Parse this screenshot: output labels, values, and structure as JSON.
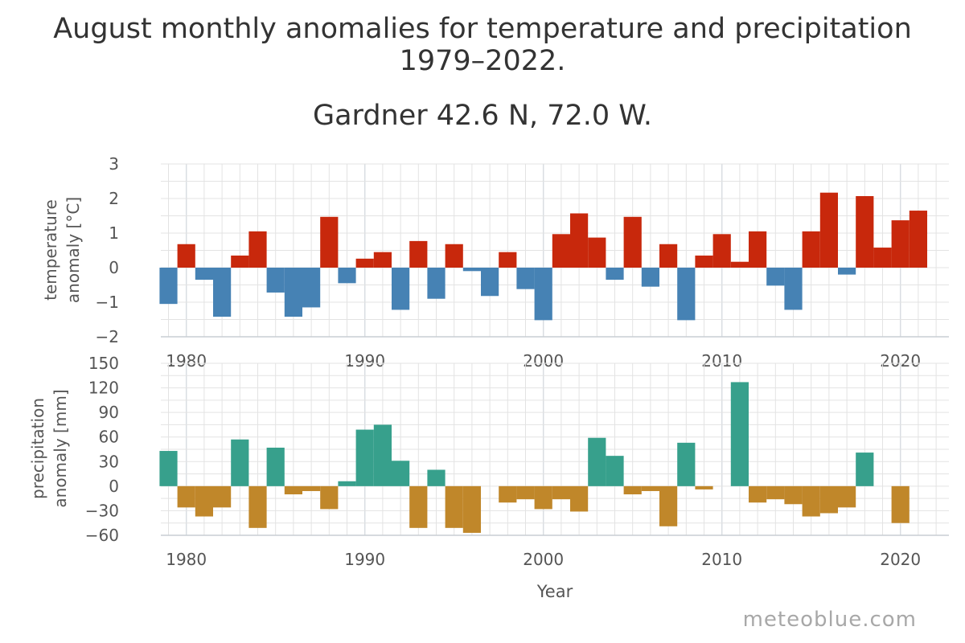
{
  "title": {
    "line1": "August monthly anomalies for temperature and precipitation",
    "line2": "1979–2022.",
    "location": "Gardner 42.6 N, 72.0 W."
  },
  "watermark": "meteoblue.com",
  "colors": {
    "temp_positive": "#c8280c",
    "temp_negative": "#4682b4",
    "precip_positive": "#37a08c",
    "precip_negative": "#c0872a",
    "grid": "#e3e3e3"
  },
  "chart_data": [
    {
      "type": "bar",
      "name": "temperature",
      "ylabel": "temperature anomaly [°C]",
      "ylabel_lines": [
        "temperature",
        "anomaly [°C]"
      ],
      "ylim": [
        -2,
        3
      ],
      "yticks": [
        3,
        2,
        1,
        0,
        -1,
        -2
      ],
      "ytick_labels": [
        "3",
        "2",
        "1",
        "0",
        "−1",
        "−2"
      ],
      "xlim": [
        1978.5,
        2022.5
      ],
      "xticks": [
        1980,
        1990,
        2000,
        2010,
        2020
      ],
      "xtick_labels": [
        "1980",
        "1990",
        "2000",
        "2010",
        "2020"
      ],
      "grid": true,
      "x": [
        1979,
        1980,
        1981,
        1982,
        1983,
        1984,
        1985,
        1986,
        1987,
        1988,
        1989,
        1990,
        1991,
        1992,
        1993,
        1994,
        1995,
        1996,
        1997,
        1998,
        1999,
        2000,
        2001,
        2002,
        2003,
        2004,
        2005,
        2006,
        2007,
        2008,
        2009,
        2010,
        2011,
        2012,
        2013,
        2014,
        2015,
        2016,
        2017,
        2018,
        2019,
        2020,
        2021
      ],
      "values": [
        -1.05,
        0.68,
        -0.35,
        -1.42,
        0.35,
        1.05,
        -0.72,
        -1.42,
        -1.15,
        1.47,
        -0.45,
        0.26,
        0.45,
        -1.22,
        0.77,
        -0.9,
        0.68,
        -0.1,
        -0.82,
        0.45,
        -0.62,
        -1.52,
        0.97,
        1.57,
        0.87,
        -0.35,
        1.47,
        -0.55,
        0.68,
        -1.52,
        0.35,
        0.97,
        0.17,
        1.05,
        -0.52,
        -1.22,
        1.05,
        2.17,
        -0.2,
        2.07,
        0.58,
        1.37,
        1.65
      ]
    },
    {
      "type": "bar",
      "name": "precipitation",
      "xlabel": "Year",
      "ylabel": "precipitation anomaly [mm]",
      "ylabel_lines": [
        "precipitation",
        "anomaly [mm]"
      ],
      "ylim": [
        -60,
        150
      ],
      "yticks": [
        150,
        120,
        90,
        60,
        30,
        0,
        -30,
        -60
      ],
      "ytick_labels": [
        "150",
        "120",
        "90",
        "60",
        "30",
        "0",
        "−30",
        "−60"
      ],
      "xlim": [
        1978.5,
        2022.5
      ],
      "xticks": [
        1980,
        1990,
        2000,
        2010,
        2020
      ],
      "xtick_labels": [
        "1980",
        "1990",
        "2000",
        "2010",
        "2020"
      ],
      "grid": true,
      "x": [
        1979,
        1980,
        1981,
        1982,
        1983,
        1984,
        1985,
        1986,
        1987,
        1988,
        1989,
        1990,
        1991,
        1992,
        1993,
        1994,
        1995,
        1996,
        1997,
        1998,
        1999,
        2000,
        2001,
        2002,
        2003,
        2004,
        2005,
        2006,
        2007,
        2008,
        2009,
        2010,
        2011,
        2012,
        2013,
        2014,
        2015,
        2016,
        2017,
        2018,
        2019,
        2020,
        2021
      ],
      "values": [
        43,
        -26,
        -37,
        -26,
        57,
        -51,
        47,
        -10,
        -6,
        -28,
        6,
        69,
        75,
        31,
        -51,
        20,
        -51,
        -57,
        0,
        -20,
        -16,
        -28,
        -16,
        -31,
        59,
        37,
        -10,
        -6,
        -49,
        53,
        -4,
        0,
        127,
        -20,
        -16,
        -22,
        -37,
        -33,
        -26,
        41,
        0,
        -45,
        0
      ]
    }
  ]
}
